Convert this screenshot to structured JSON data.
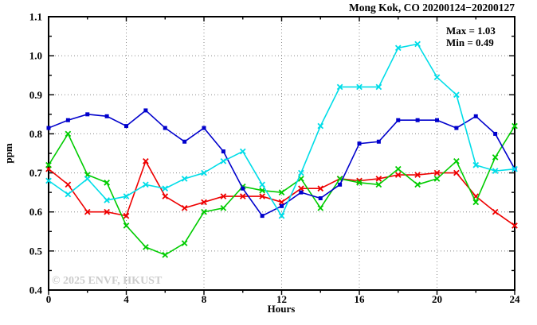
{
  "title": "Mong Kok, CO 20200124−20200127",
  "annotation": {
    "max_label": "Max = 1.03",
    "min_label": "Min = 0.49"
  },
  "watermark": "© 2025 ENVF, HKUST",
  "chart_data": {
    "type": "line",
    "title": "Mong Kok, CO 20200124−20200127",
    "xlabel": "Hours",
    "ylabel": "ppm",
    "xlim": [
      0,
      24
    ],
    "ylim": [
      0.4,
      1.1
    ],
    "grid": "dotted-major-both-axes",
    "legend": "none",
    "max_value": 1.03,
    "min_value": 0.49,
    "x_tick_labels": [
      "0",
      "4",
      "8",
      "12",
      "16",
      "20",
      "24"
    ],
    "x_major_ticks": [
      0,
      4,
      8,
      12,
      16,
      20,
      24
    ],
    "x_minor_ticks": [
      2,
      6,
      10,
      14,
      18,
      22
    ],
    "y_tick_labels": [
      "0.4",
      "0.5",
      "0.6",
      "0.7",
      "0.8",
      "0.9",
      "1.0",
      "1.1"
    ],
    "y_major_ticks": [
      0.4,
      0.5,
      0.6,
      0.7,
      0.8,
      0.9,
      1.0,
      1.1
    ],
    "y_minor_ticks": [
      0.45,
      0.55,
      0.65,
      0.75,
      0.85,
      0.95,
      1.05
    ],
    "x": [
      0,
      1,
      2,
      3,
      4,
      5,
      6,
      7,
      8,
      9,
      10,
      11,
      12,
      13,
      14,
      15,
      16,
      17,
      18,
      19,
      20,
      21,
      22,
      23,
      24
    ],
    "series": [
      {
        "name": "series-red",
        "color": "#ee0000",
        "marker": "x",
        "values": [
          0.71,
          0.67,
          0.6,
          0.6,
          0.59,
          0.73,
          0.64,
          0.61,
          0.625,
          0.64,
          0.64,
          0.64,
          0.625,
          0.66,
          0.66,
          0.685,
          0.68,
          0.685,
          0.695,
          0.695,
          0.7,
          0.7,
          0.64,
          0.6,
          0.565
        ]
      },
      {
        "name": "series-green",
        "color": "#00cc00",
        "marker": "x",
        "values": [
          0.72,
          0.8,
          0.695,
          0.675,
          0.565,
          0.51,
          0.49,
          0.52,
          0.6,
          0.61,
          0.665,
          0.655,
          0.65,
          0.685,
          0.61,
          0.685,
          0.675,
          0.67,
          0.71,
          0.67,
          0.685,
          0.73,
          0.625,
          0.74,
          0.82
        ]
      },
      {
        "name": "series-blue",
        "color": "#0000cc",
        "marker": "square",
        "values": [
          0.815,
          0.835,
          0.85,
          0.845,
          0.82,
          0.86,
          0.815,
          0.78,
          0.815,
          0.755,
          0.66,
          0.59,
          0.615,
          0.65,
          0.635,
          0.67,
          0.775,
          0.78,
          0.835,
          0.835,
          0.835,
          0.815,
          0.845,
          0.8,
          0.71
        ]
      },
      {
        "name": "series-cyan",
        "color": "#00dde8",
        "marker": "x",
        "values": [
          0.68,
          0.645,
          0.685,
          0.63,
          0.64,
          0.67,
          0.66,
          0.685,
          0.7,
          0.73,
          0.755,
          0.67,
          0.59,
          0.7,
          0.82,
          0.92,
          0.92,
          0.92,
          1.02,
          1.03,
          0.945,
          0.9,
          0.72,
          0.705,
          0.71
        ]
      }
    ]
  }
}
